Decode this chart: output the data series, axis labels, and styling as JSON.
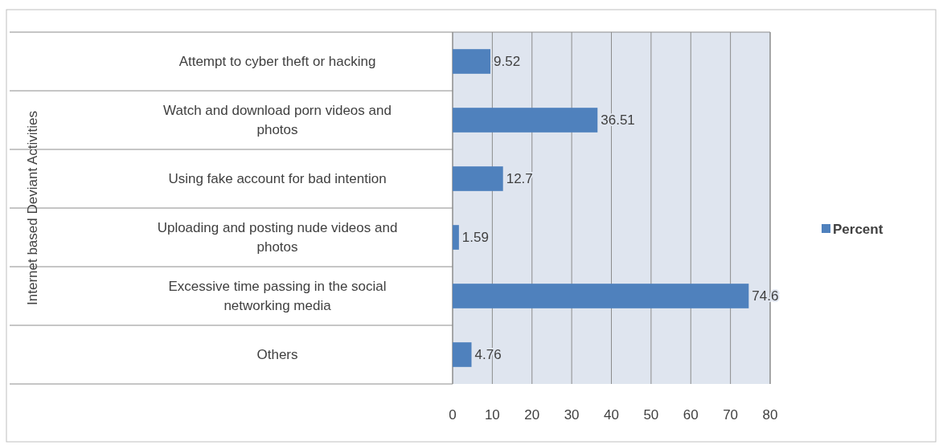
{
  "chart_data": {
    "type": "bar",
    "orientation": "horizontal",
    "annotations": [
      "Internet based Deviant Activities"
    ],
    "categories": [
      "Attempt to cyber theft or hacking",
      "Watch and download porn videos and photos",
      "Using fake account for bad intention",
      "Uploading and posting nude videos and photos",
      "Excessive time passing in the social networking media",
      "Others"
    ],
    "series": [
      {
        "name": "Percent",
        "color": "#4f81bd",
        "values": [
          9.52,
          36.51,
          12.7,
          1.59,
          74.6,
          4.76
        ]
      }
    ],
    "xlim": [
      0,
      80
    ],
    "xticks": [
      0,
      10,
      20,
      30,
      40,
      50,
      60,
      70,
      80
    ],
    "grid": "x",
    "legend": "right",
    "data_labels": true
  }
}
